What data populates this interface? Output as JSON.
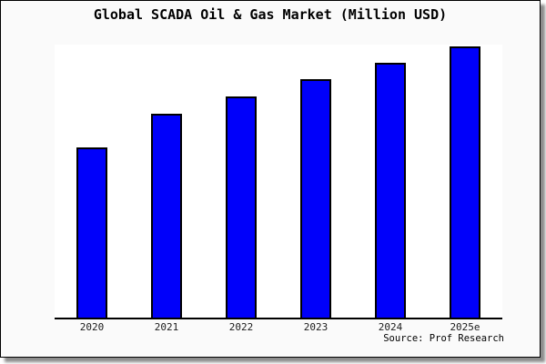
{
  "window": {
    "background_color": "#ffffff"
  },
  "card": {
    "background_color": "#fafafa",
    "border_color": "#000000",
    "shadow_color": "#737373"
  },
  "chart_data": {
    "type": "bar",
    "title": "Global SCADA Oil & Gas Market (Million USD)",
    "categories": [
      "2020",
      "2021",
      "2022",
      "2023",
      "2024",
      "2025e"
    ],
    "values": [
      62.8,
      75.2,
      81.5,
      87.9,
      94.0,
      100.0
    ],
    "value_scale": "relative index (y-axis has no tick labels; 2025e bar = 100)",
    "xlabel": "",
    "ylabel": "",
    "ylim": [
      0,
      100.7
    ],
    "grid": false,
    "legend": false,
    "y_axis_labeled": false,
    "bar_color": "#0000fa",
    "bar_border_color": "#000000",
    "plot_background": "#ffffff",
    "axis_line_color": "#000000",
    "annotation": "Source: Prof Research"
  }
}
